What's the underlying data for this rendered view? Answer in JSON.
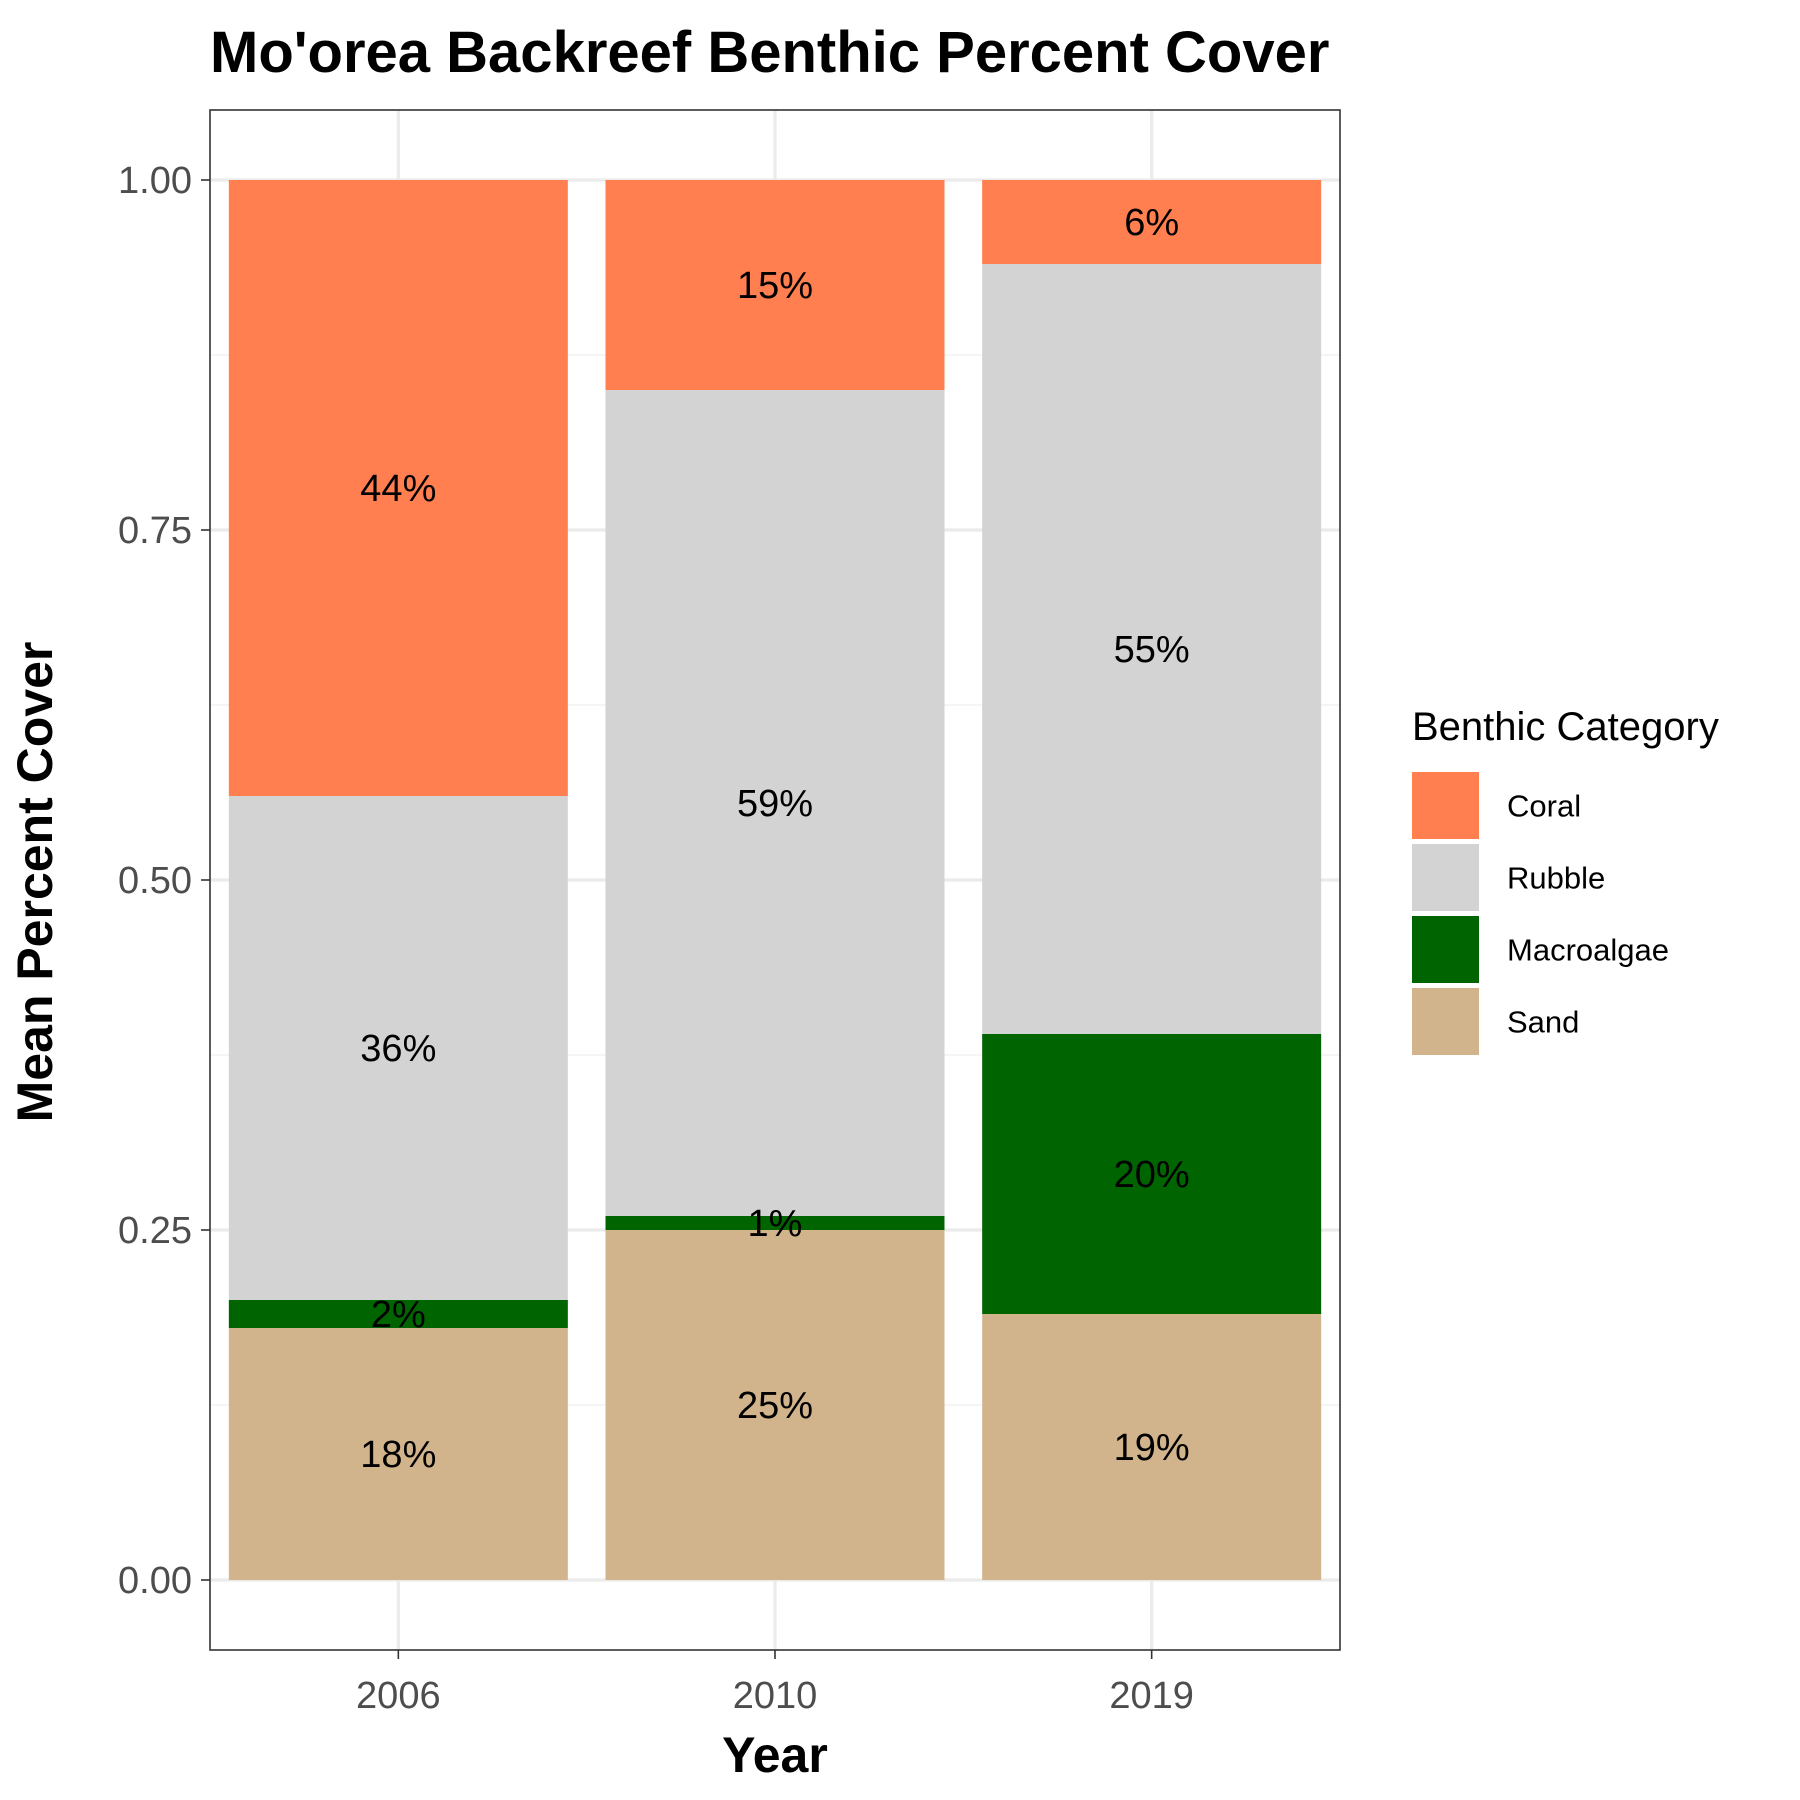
{
  "chart_data": {
    "type": "bar",
    "stacked": true,
    "title": "Mo'orea Backreef Benthic Percent Cover",
    "xlabel": "Year",
    "ylabel": "Mean Percent Cover",
    "categories": [
      "2006",
      "2010",
      "2019"
    ],
    "ylim": [
      -0.05,
      1.05
    ],
    "yticks": [
      "0.00",
      "0.25",
      "0.50",
      "0.75",
      "1.00"
    ],
    "ytick_values": [
      0,
      0.25,
      0.5,
      0.75,
      1.0
    ],
    "grid": true,
    "legend": {
      "title": "Benthic Category",
      "placement": "right"
    },
    "series": [
      {
        "name": "Sand",
        "color": "#D2B48C",
        "values": [
          0.18,
          0.25,
          0.19
        ],
        "labels": [
          "18%",
          "25%",
          "19%"
        ]
      },
      {
        "name": "Macroalgae",
        "color": "#006400",
        "values": [
          0.02,
          0.01,
          0.2
        ],
        "labels": [
          "2%",
          "1%",
          "20%"
        ]
      },
      {
        "name": "Rubble",
        "color": "#D3D3D3",
        "values": [
          0.36,
          0.59,
          0.55
        ],
        "labels": [
          "36%",
          "59%",
          "55%"
        ]
      },
      {
        "name": "Coral",
        "color": "#FF7F50",
        "values": [
          0.44,
          0.15,
          0.06
        ],
        "labels": [
          "44%",
          "15%",
          "6%"
        ]
      }
    ],
    "legend_order": [
      "Coral",
      "Rubble",
      "Macroalgae",
      "Sand"
    ]
  }
}
